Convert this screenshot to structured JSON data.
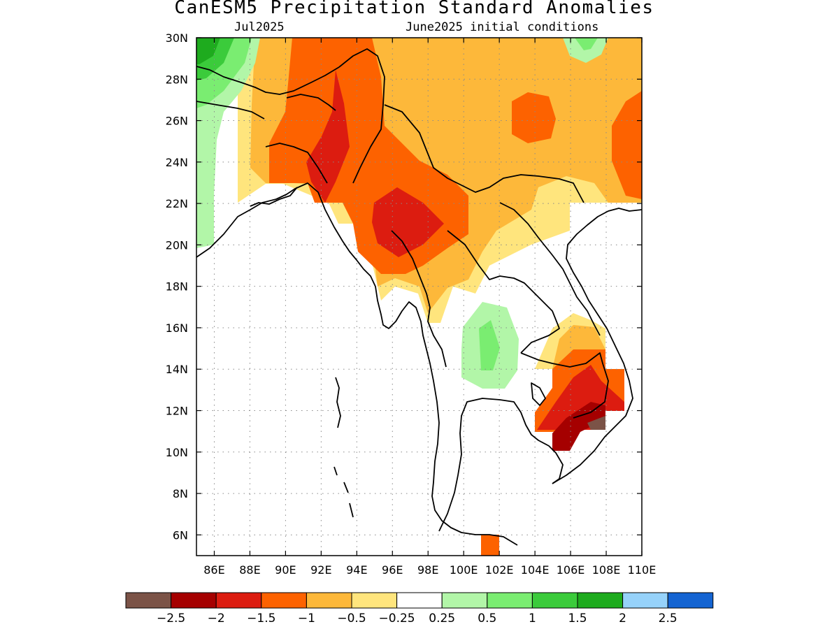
{
  "title": "CanESM5 Precipitation Standard Anomalies",
  "subtitle_left": "Jul2025",
  "subtitle_right": "June2025 initial conditions",
  "map": {
    "lon_range": [
      85,
      110
    ],
    "lat_range": [
      5,
      30
    ],
    "x_ticks": [
      "86E",
      "88E",
      "90E",
      "92E",
      "94E",
      "96E",
      "98E",
      "100E",
      "102E",
      "104E",
      "106E",
      "108E",
      "110E"
    ],
    "y_ticks": [
      "30N",
      "28N",
      "26N",
      "24N",
      "22N",
      "20N",
      "18N",
      "16N",
      "14N",
      "12N",
      "10N",
      "8N",
      "6N"
    ],
    "grid": "dotted"
  },
  "colorbar": {
    "colors": [
      "#7b5347",
      "#a50000",
      "#dc1c10",
      "#fd6200",
      "#fdb83a",
      "#ffe57d",
      "#ffffff",
      "#b2f6a8",
      "#7aed71",
      "#3bcb3b",
      "#1eab1e",
      "#96d2fa",
      "#1464d2"
    ],
    "labels": [
      "−2.5",
      "−2",
      "−1.5",
      "−1",
      "−0.5",
      "−0.25",
      "0.25",
      "0.5",
      "1",
      "1.5",
      "2",
      "2.5"
    ]
  }
}
